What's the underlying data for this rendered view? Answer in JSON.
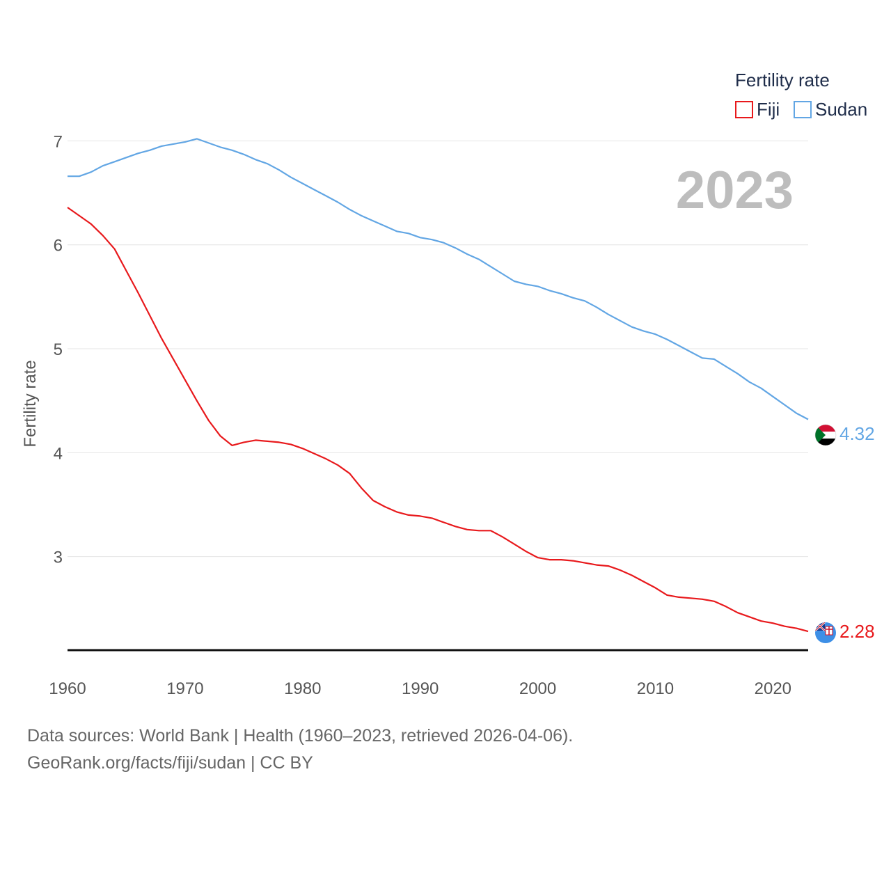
{
  "chart_data": {
    "type": "line",
    "title": "",
    "current_year": "2023",
    "xlabel": "",
    "ylabel": "Fertility rate",
    "xlim": [
      1960,
      2023
    ],
    "ylim": [
      2.1,
      7.15
    ],
    "x_ticks": [
      1960,
      1970,
      1980,
      1990,
      2000,
      2010,
      2020
    ],
    "y_ticks": [
      3,
      4,
      5,
      6,
      7
    ],
    "grid": true,
    "legend": {
      "title": "Fertility rate",
      "position": "top-right",
      "entries": [
        "Fiji",
        "Sudan"
      ]
    },
    "x": [
      1960,
      1961,
      1962,
      1963,
      1964,
      1965,
      1966,
      1967,
      1968,
      1969,
      1970,
      1971,
      1972,
      1973,
      1974,
      1975,
      1976,
      1977,
      1978,
      1979,
      1980,
      1981,
      1982,
      1983,
      1984,
      1985,
      1986,
      1987,
      1988,
      1989,
      1990,
      1991,
      1992,
      1993,
      1994,
      1995,
      1996,
      1997,
      1998,
      1999,
      2000,
      2001,
      2002,
      2003,
      2004,
      2005,
      2006,
      2007,
      2008,
      2009,
      2010,
      2011,
      2012,
      2013,
      2014,
      2015,
      2016,
      2017,
      2018,
      2019,
      2020,
      2021,
      2022,
      2023
    ],
    "series": [
      {
        "name": "Fiji",
        "color": "#e8191c",
        "end_label": "2.28",
        "values": [
          6.36,
          6.28,
          6.2,
          6.09,
          5.96,
          5.75,
          5.54,
          5.32,
          5.1,
          4.9,
          4.7,
          4.5,
          4.31,
          4.16,
          4.07,
          4.1,
          4.12,
          4.11,
          4.1,
          4.08,
          4.04,
          3.99,
          3.94,
          3.88,
          3.8,
          3.66,
          3.54,
          3.48,
          3.43,
          3.4,
          3.39,
          3.37,
          3.33,
          3.29,
          3.26,
          3.25,
          3.25,
          3.19,
          3.12,
          3.05,
          2.99,
          2.97,
          2.97,
          2.96,
          2.94,
          2.92,
          2.91,
          2.87,
          2.82,
          2.76,
          2.7,
          2.63,
          2.61,
          2.6,
          2.59,
          2.57,
          2.52,
          2.46,
          2.42,
          2.38,
          2.36,
          2.33,
          2.31,
          2.28
        ]
      },
      {
        "name": "Sudan",
        "color": "#62a6e4",
        "end_label": "4.32",
        "values": [
          6.66,
          6.66,
          6.7,
          6.76,
          6.8,
          6.84,
          6.88,
          6.91,
          6.95,
          6.97,
          6.99,
          7.02,
          6.98,
          6.94,
          6.91,
          6.87,
          6.82,
          6.78,
          6.72,
          6.65,
          6.59,
          6.53,
          6.47,
          6.41,
          6.34,
          6.28,
          6.23,
          6.18,
          6.13,
          6.11,
          6.07,
          6.05,
          6.02,
          5.97,
          5.91,
          5.86,
          5.79,
          5.72,
          5.65,
          5.62,
          5.6,
          5.56,
          5.53,
          5.49,
          5.46,
          5.4,
          5.33,
          5.27,
          5.21,
          5.17,
          5.14,
          5.09,
          5.03,
          4.97,
          4.91,
          4.9,
          4.83,
          4.76,
          4.68,
          4.62,
          4.54,
          4.46,
          4.38,
          4.32
        ]
      }
    ]
  },
  "footer": {
    "source": "Data sources: World Bank | Health (1960–2023, retrieved 2026-04-06).",
    "credit": "GeoRank.org/facts/fiji/sudan | CC BY"
  }
}
